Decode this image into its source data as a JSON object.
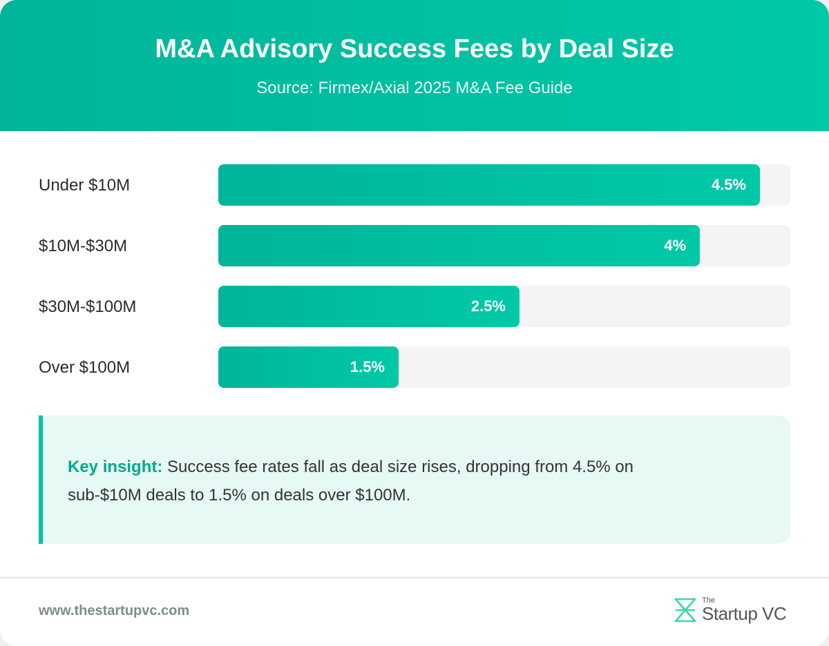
{
  "header": {
    "title": "M&A Advisory Success Fees by Deal Size",
    "subtitle": "Source: Firmex/Axial 2025 M&A Fee Guide"
  },
  "chart_data": {
    "type": "bar",
    "orientation": "horizontal",
    "categories": [
      "Under $10M",
      "$10M-$30M",
      "$30M-$100M",
      "Over $100M"
    ],
    "values": [
      4.5,
      4,
      2.5,
      1.5
    ],
    "value_labels": [
      "4.5%",
      "4%",
      "2.5%",
      "1.5%"
    ],
    "xlim": [
      0,
      4.75
    ],
    "colors": {
      "bar_start": "#00b59a",
      "bar_end": "#00c9a7",
      "track": "#f4f4f4"
    }
  },
  "insight": {
    "label": "Key insight:",
    "text": " Success fee rates fall as deal size rises, dropping from 4.5% on sub-$10M deals to 1.5% on deals over $100M."
  },
  "footer": {
    "url": "www.thestartupvc.com",
    "logo_the": "The",
    "logo_name": "Startup VC",
    "logo_icon": "startupvc-logo-icon"
  },
  "colors": {
    "accent": "#00c3a5",
    "insight_bg": "#e6f9f4",
    "insight_label": "#00a98e"
  }
}
